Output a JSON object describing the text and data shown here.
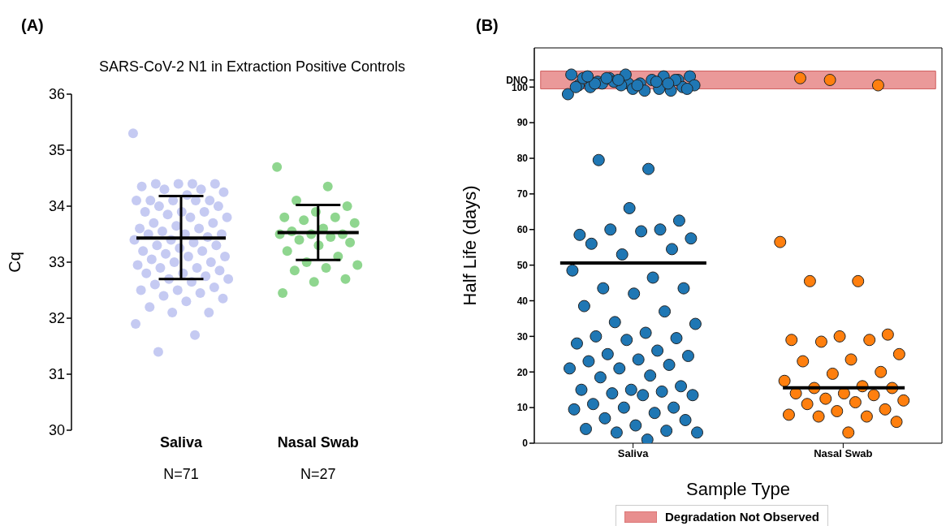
{
  "chart_data": [
    {
      "type": "scatter",
      "title": "SARS-CoV-2 N1 in Extraction Positive Controls",
      "ylabel": "Cq",
      "categories": [
        "Saliva",
        "Nasal Swab"
      ],
      "ylim": [
        30,
        36
      ],
      "yticks": [
        30,
        31,
        32,
        33,
        34,
        35,
        36
      ],
      "marker": "circle",
      "annotations": [
        "(A)",
        "N=71",
        "N=27"
      ],
      "series": [
        {
          "color": "#c5caf2",
          "x": [
            "Saliva",
            "Saliva",
            "Saliva",
            "Saliva",
            "Saliva",
            "Saliva",
            "Saliva",
            "Saliva",
            "Saliva",
            "Saliva",
            "Saliva",
            "Saliva",
            "Saliva",
            "Saliva",
            "Saliva",
            "Saliva",
            "Saliva",
            "Saliva",
            "Saliva",
            "Saliva",
            "Saliva",
            "Saliva",
            "Saliva",
            "Saliva",
            "Saliva",
            "Saliva",
            "Saliva",
            "Saliva",
            "Saliva",
            "Saliva",
            "Saliva",
            "Saliva",
            "Saliva",
            "Saliva",
            "Saliva",
            "Saliva",
            "Saliva",
            "Saliva",
            "Saliva",
            "Saliva",
            "Saliva",
            "Saliva",
            "Saliva",
            "Saliva",
            "Saliva",
            "Saliva",
            "Saliva",
            "Saliva",
            "Saliva",
            "Saliva",
            "Saliva",
            "Saliva",
            "Saliva",
            "Saliva",
            "Saliva",
            "Saliva",
            "Saliva",
            "Saliva",
            "Saliva",
            "Saliva",
            "Saliva",
            "Saliva",
            "Saliva",
            "Saliva",
            "Saliva",
            "Saliva",
            "Saliva",
            "Saliva",
            "Saliva",
            "Saliva",
            "Saliva"
          ],
          "values": [
            35.3,
            34.4,
            34.4,
            34.4,
            34.4,
            34.35,
            34.3,
            34.3,
            34.25,
            34.2,
            34.1,
            34.1,
            34.1,
            34.1,
            34.1,
            34.0,
            34.0,
            33.9,
            33.9,
            33.9,
            33.85,
            33.8,
            33.8,
            33.7,
            33.7,
            33.65,
            33.6,
            33.6,
            33.55,
            33.5,
            33.5,
            33.5,
            33.45,
            33.4,
            33.4,
            33.35,
            33.3,
            33.3,
            33.25,
            33.2,
            33.2,
            33.15,
            33.1,
            33.1,
            33.05,
            33.0,
            33.0,
            32.95,
            32.9,
            32.9,
            32.85,
            32.8,
            32.8,
            32.75,
            32.7,
            32.7,
            32.65,
            32.6,
            32.55,
            32.5,
            32.5,
            32.45,
            32.4,
            32.35,
            32.3,
            32.2,
            32.1,
            32.1,
            31.9,
            31.7,
            31.4
          ]
        },
        {
          "color": "#8fd68f",
          "x": [
            "Nasal Swab",
            "Nasal Swab",
            "Nasal Swab",
            "Nasal Swab",
            "Nasal Swab",
            "Nasal Swab",
            "Nasal Swab",
            "Nasal Swab",
            "Nasal Swab",
            "Nasal Swab",
            "Nasal Swab",
            "Nasal Swab",
            "Nasal Swab",
            "Nasal Swab",
            "Nasal Swab",
            "Nasal Swab",
            "Nasal Swab",
            "Nasal Swab",
            "Nasal Swab",
            "Nasal Swab",
            "Nasal Swab",
            "Nasal Swab",
            "Nasal Swab",
            "Nasal Swab",
            "Nasal Swab",
            "Nasal Swab",
            "Nasal Swab"
          ],
          "values": [
            34.7,
            34.35,
            34.1,
            34.0,
            33.9,
            33.8,
            33.8,
            33.75,
            33.7,
            33.6,
            33.55,
            33.5,
            33.5,
            33.5,
            33.45,
            33.4,
            33.35,
            33.3,
            33.2,
            33.1,
            33.0,
            32.95,
            32.9,
            32.85,
            32.7,
            32.65,
            32.45
          ]
        },
        {
          "type": "box",
          "color": "#000000",
          "boxes": [
            {
              "low": 32.7,
              "q1": 33.43,
              "median": 33.43,
              "q3": 33.43,
              "high": 34.18
            },
            {
              "low": 33.04,
              "q1": 33.53,
              "median": 33.53,
              "q3": 33.53,
              "high": 34.02
            }
          ]
        }
      ]
    },
    {
      "type": "scatter",
      "xlabel": "Sample Type",
      "ylabel": "Half Life (days)",
      "categories": [
        "Saliva",
        "Nasal Swab"
      ],
      "ylim": [
        0,
        111
      ],
      "yticks": [
        0,
        10,
        20,
        30,
        40,
        50,
        60,
        70,
        80,
        90,
        100,
        {
          "value": 102,
          "label": "DNO"
        }
      ],
      "marker": "circle",
      "legend": "bottom",
      "annotations": [
        "(B)"
      ],
      "bands": [
        {
          "axis": "y",
          "from": 99.5,
          "to": 104.5,
          "label": "Degradation Not Observed",
          "color": "#e88e8e"
        }
      ],
      "series": [
        {
          "color": "#1f77b4",
          "x": [
            "Saliva",
            "Saliva",
            "Saliva",
            "Saliva",
            "Saliva",
            "Saliva",
            "Saliva",
            "Saliva",
            "Saliva",
            "Saliva",
            "Saliva",
            "Saliva",
            "Saliva",
            "Saliva",
            "Saliva",
            "Saliva",
            "Saliva",
            "Saliva",
            "Saliva",
            "Saliva",
            "Saliva",
            "Saliva",
            "Saliva",
            "Saliva",
            "Saliva",
            "Saliva",
            "Saliva",
            "Saliva",
            "Saliva",
            "Saliva",
            "Saliva",
            "Saliva",
            "Saliva",
            "Saliva",
            "Saliva",
            "Saliva",
            "Saliva",
            "Saliva",
            "Saliva",
            "Saliva",
            "Saliva",
            "Saliva",
            "Saliva",
            "Saliva",
            "Saliva",
            "Saliva",
            "Saliva",
            "Saliva",
            "Saliva",
            "Saliva",
            "Saliva",
            "Saliva",
            "Saliva",
            "Saliva",
            "Saliva",
            "Saliva",
            "Saliva",
            "Saliva",
            "Saliva",
            "Saliva",
            "Saliva",
            "Saliva",
            "Saliva",
            "Saliva",
            "Saliva",
            "Saliva",
            "Saliva",
            "Saliva",
            "Saliva",
            "Saliva",
            "Saliva",
            "Saliva",
            "Saliva",
            "Saliva",
            "Saliva",
            "Saliva",
            "Saliva",
            "Saliva",
            "Saliva",
            "Saliva",
            "Saliva",
            "Saliva",
            "Saliva",
            "Saliva",
            "Saliva",
            "Saliva",
            "Saliva",
            "Saliva",
            "Saliva"
          ],
          "values": [
            98,
            77,
            79.5,
            62.5,
            66,
            58.5,
            60,
            60,
            57.5,
            59.5,
            56,
            54.5,
            53,
            48.5,
            46.5,
            43.5,
            43.5,
            42,
            38.5,
            37,
            34,
            33.5,
            31,
            30,
            29.5,
            29,
            28,
            26,
            25,
            24.5,
            23.5,
            23,
            22,
            21,
            21,
            19,
            18.5,
            16,
            15,
            15,
            14.5,
            14,
            13.5,
            13.5,
            11,
            10,
            10,
            9.5,
            8.5,
            7,
            6.5,
            5,
            4,
            3.5,
            3,
            3,
            1,
            101.5,
            102,
            101,
            100.5,
            99.5,
            102.5,
            103,
            101,
            100,
            99,
            100.5,
            103.5,
            102,
            101,
            100,
            99.5,
            102.5,
            103,
            101.5,
            100.5,
            99,
            101,
            102,
            103.5,
            100,
            101.5,
            102.5,
            99.5,
            100.5,
            103,
            101,
            102
          ]
        },
        {
          "color": "#ff7f0e",
          "x": [
            "Nasal Swab",
            "Nasal Swab",
            "Nasal Swab",
            "Nasal Swab",
            "Nasal Swab",
            "Nasal Swab",
            "Nasal Swab",
            "Nasal Swab",
            "Nasal Swab",
            "Nasal Swab",
            "Nasal Swab",
            "Nasal Swab",
            "Nasal Swab",
            "Nasal Swab",
            "Nasal Swab",
            "Nasal Swab",
            "Nasal Swab",
            "Nasal Swab",
            "Nasal Swab",
            "Nasal Swab",
            "Nasal Swab",
            "Nasal Swab",
            "Nasal Swab",
            "Nasal Swab",
            "Nasal Swab",
            "Nasal Swab",
            "Nasal Swab",
            "Nasal Swab",
            "Nasal Swab",
            "Nasal Swab",
            "Nasal Swab",
            "Nasal Swab",
            "Nasal Swab",
            "Nasal Swab"
          ],
          "values": [
            56.5,
            45.5,
            45.5,
            30.5,
            30,
            29,
            29,
            28.5,
            25,
            23.5,
            23,
            20,
            19.5,
            17.5,
            16,
            15.5,
            15.5,
            14,
            14,
            13.5,
            12.5,
            12,
            11.5,
            11,
            9.5,
            9,
            8,
            7.5,
            7.5,
            6,
            3,
            102.5,
            100.5,
            102
          ]
        },
        {
          "type": "box",
          "color": "#000000",
          "boxes": [
            {
              "low": 50.5,
              "q1": 50.5,
              "median": 50.5,
              "q3": 50.5,
              "high": 50.5
            },
            {
              "low": 15.5,
              "q1": 15.5,
              "median": 15.5,
              "q3": 15.5,
              "high": 15.5
            }
          ]
        }
      ]
    }
  ]
}
